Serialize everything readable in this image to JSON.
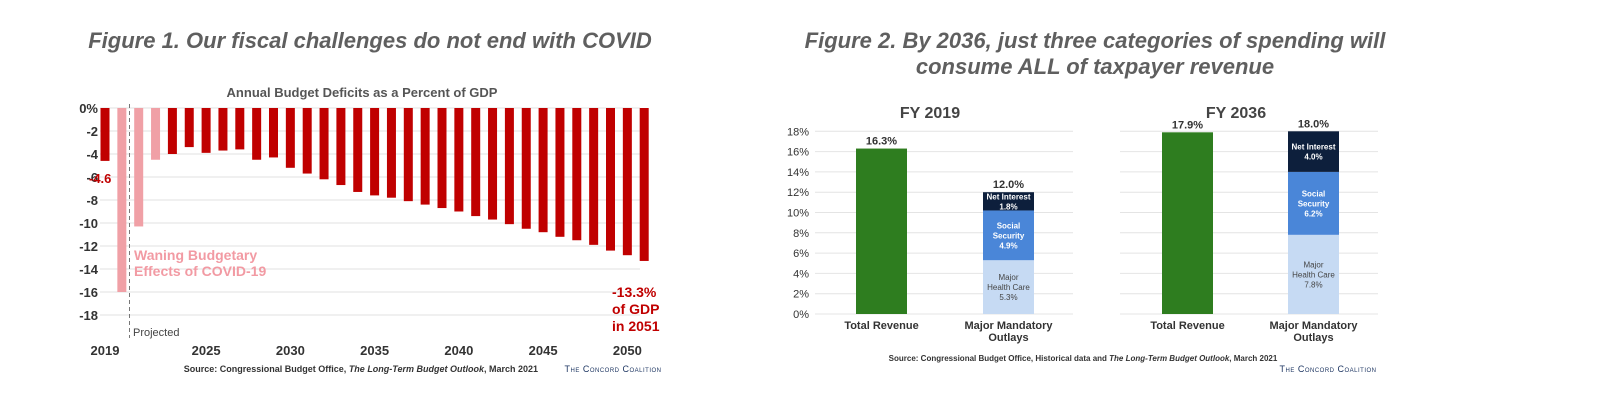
{
  "figures": {
    "fig1_title": "Figure 1. Our fiscal challenges do not end with COVID",
    "fig2_title": "Figure 2. By 2036, just three categories of spending will consume ALL of taxpayer revenue"
  },
  "colors": {
    "deficit": "#c00000",
    "covid": "#f0a0a6",
    "revenue": "#2e7d1f",
    "net_interest": "#0d1f3c",
    "social_security": "#4a86d8",
    "health_care": "#c6daf3",
    "title_gray": "#5f5f5f",
    "annotation_pink": "#f29aa3",
    "source_navy": "#1f3763"
  },
  "chart_data": [
    {
      "type": "bar",
      "title": "Annual Budget Deficits as a Percent of GDP",
      "x": [
        2019,
        2020,
        2021,
        2022,
        2023,
        2024,
        2025,
        2026,
        2027,
        2028,
        2029,
        2030,
        2031,
        2032,
        2033,
        2034,
        2035,
        2036,
        2037,
        2038,
        2039,
        2040,
        2041,
        2042,
        2043,
        2044,
        2045,
        2046,
        2047,
        2048,
        2049,
        2050,
        2051
      ],
      "values": [
        -4.6,
        -16.0,
        -10.3,
        -4.5,
        -4.0,
        -3.4,
        -3.9,
        -3.7,
        -3.6,
        -4.5,
        -4.3,
        -5.2,
        -5.7,
        -6.2,
        -6.7,
        -7.3,
        -7.6,
        -7.8,
        -8.1,
        -8.4,
        -8.7,
        -9.0,
        -9.4,
        -9.7,
        -10.1,
        -10.5,
        -10.8,
        -11.2,
        -11.5,
        -11.9,
        -12.4,
        -12.8,
        -13.3
      ],
      "highlight": [
        2020,
        2021,
        2022
      ],
      "xticks": [
        "2019",
        "2025",
        "2030",
        "2035",
        "2040",
        "2045",
        "2050"
      ],
      "yticks": [
        "0%",
        "-2",
        "-4",
        "-6",
        "-8",
        "-10",
        "-12",
        "-14",
        "-16",
        "-18"
      ],
      "ylim": [
        -18,
        0
      ],
      "annotations": {
        "first_value": "-4.6",
        "covid_line1": "Waning Budgetary",
        "covid_line2": "Effects of COVID-19",
        "projected": "Projected",
        "last_line1": "-13.3%",
        "last_line2": "of GDP",
        "last_line3": "in 2051"
      },
      "source_prefix": "Source: Congressional Budget Office, ",
      "source_italic": "The Long-Term Budget Outlook",
      "source_suffix": ", March 2021",
      "logo": "The Concord Coalition"
    },
    {
      "type": "stacked-bar",
      "panels": [
        {
          "title": "FY 2019",
          "revenue": {
            "label": "Total Revenue",
            "value": 16.3,
            "value_label": "16.3%"
          },
          "outlays": {
            "label_line1": "Major Mandatory",
            "label_line2": "Outlays",
            "total_label": "12.0%",
            "segments": [
              {
                "name_lines": [
                  "Major",
                  "Health Care"
                ],
                "value": 5.3,
                "value_label": "5.3%"
              },
              {
                "name_lines": [
                  "Social",
                  "Security"
                ],
                "value": 4.9,
                "value_label": "4.9%"
              },
              {
                "name_lines": [
                  "Net Interest"
                ],
                "value": 1.8,
                "value_label": "1.8%"
              }
            ]
          }
        },
        {
          "title": "FY 2036",
          "revenue": {
            "label": "Total Revenue",
            "value": 17.9,
            "value_label": "17.9%"
          },
          "outlays": {
            "label_line1": "Major Mandatory",
            "label_line2": "Outlays",
            "total_label": "18.0%",
            "segments": [
              {
                "name_lines": [
                  "Major",
                  "Health Care"
                ],
                "value": 7.8,
                "value_label": "7.8%"
              },
              {
                "name_lines": [
                  "Social",
                  "Security"
                ],
                "value": 6.2,
                "value_label": "6.2%"
              },
              {
                "name_lines": [
                  "Net Interest"
                ],
                "value": 4.0,
                "value_label": "4.0%"
              }
            ]
          }
        }
      ],
      "yticks": [
        "0%",
        "2%",
        "4%",
        "6%",
        "8%",
        "10%",
        "12%",
        "14%",
        "16%",
        "18%"
      ],
      "ylim": [
        0,
        18
      ],
      "source_prefix": "Source: Congressional Budget Office, Historical data and ",
      "source_italic": "The Long-Term Budget Outlook",
      "source_suffix": ", March 2021",
      "logo": "The Concord Coalition"
    }
  ]
}
